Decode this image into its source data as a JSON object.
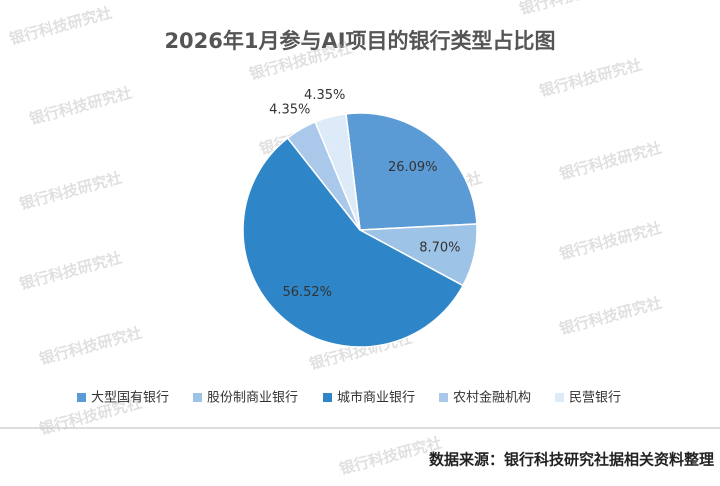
{
  "chart_data": {
    "type": "pie",
    "title": "2026年1月参与AI项目的银行类型占比图",
    "categories": [
      "大型国有银行",
      "股份制商业银行",
      "城市商业银行",
      "农村金融机构",
      "民营银行"
    ],
    "values": [
      26.09,
      8.7,
      56.52,
      4.35,
      4.35
    ],
    "value_labels": [
      "26.09%",
      "8.70%",
      "56.52%",
      "4.35%",
      "4.35%"
    ],
    "colors": [
      "#5b9bd5",
      "#9dc3e6",
      "#2e86c8",
      "#a9c8ea",
      "#ddeaf7"
    ],
    "legend": "bottom",
    "source": "数据来源：银行科技研究社据相关资料整理",
    "watermark": "银行科技研究社"
  }
}
